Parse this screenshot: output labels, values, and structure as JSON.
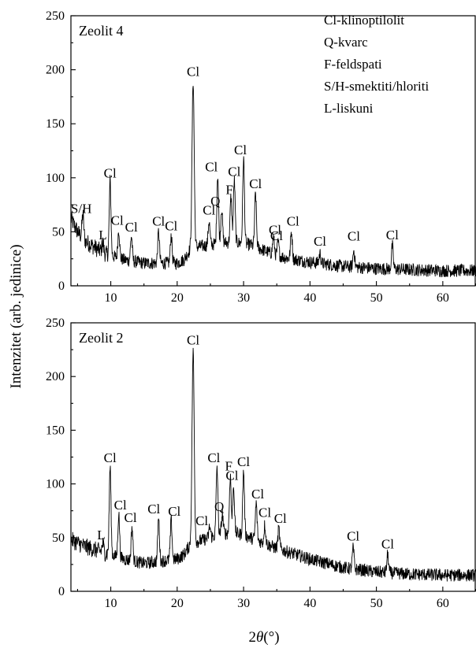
{
  "chart_data": {
    "type": "line",
    "xlabel": "2θ(°)",
    "ylabel": "Intenzitet (arb. jedinice)",
    "xlim": [
      4,
      65
    ],
    "x_ticks": [
      10,
      20,
      30,
      40,
      50,
      60
    ],
    "legend": [
      "Cl-klinoptilolit",
      "Q-kvarc",
      "F-feldspati",
      "S/H-smektiti/hloriti",
      "L-liskuni"
    ],
    "panels": [
      {
        "title": "Zeolit 4",
        "ylim": [
          0,
          250
        ],
        "y_ticks": [
          0,
          50,
          100,
          150,
          200,
          250
        ],
        "background": [
          [
            4,
            62
          ],
          [
            5,
            50
          ],
          [
            6,
            42
          ],
          [
            7,
            38
          ],
          [
            8,
            34
          ],
          [
            9,
            30
          ],
          [
            10,
            28
          ],
          [
            12,
            24
          ],
          [
            15,
            21
          ],
          [
            20,
            21
          ],
          [
            21,
            24
          ],
          [
            22,
            34
          ],
          [
            23,
            36
          ],
          [
            25,
            38
          ],
          [
            27,
            40
          ],
          [
            29,
            40
          ],
          [
            31,
            38
          ],
          [
            33,
            33
          ],
          [
            35,
            28
          ],
          [
            37,
            25
          ],
          [
            40,
            22
          ],
          [
            45,
            18
          ],
          [
            50,
            16
          ],
          [
            55,
            15
          ],
          [
            60,
            14
          ],
          [
            65,
            14
          ]
        ],
        "peaks": [
          {
            "x": 5.8,
            "y": 66,
            "label": "S/H"
          },
          {
            "x": 8.8,
            "y": 40,
            "label": "L"
          },
          {
            "x": 9.9,
            "y": 96,
            "label": "Cl"
          },
          {
            "x": 11.2,
            "y": 52,
            "label": "Cl"
          },
          {
            "x": 13.1,
            "y": 46,
            "label": "Cl"
          },
          {
            "x": 17.2,
            "y": 50,
            "label": "Cl"
          },
          {
            "x": 19.1,
            "y": 47,
            "label": "Cl"
          },
          {
            "x": 22.4,
            "y": 190,
            "label": "Cl"
          },
          {
            "x": 24.8,
            "y": 60,
            "label": "Cl"
          },
          {
            "x": 26.1,
            "y": 103,
            "label": "Cl"
          },
          {
            "x": 26.7,
            "y": 72,
            "label": "Q"
          },
          {
            "x": 28.1,
            "y": 82,
            "label": "F"
          },
          {
            "x": 28.6,
            "y": 98,
            "label": "Cl"
          },
          {
            "x": 30.0,
            "y": 118,
            "label": "Cl"
          },
          {
            "x": 31.8,
            "y": 86,
            "label": "Cl"
          },
          {
            "x": 34.5,
            "y": 45,
            "label": "Cl"
          },
          {
            "x": 35.2,
            "y": 40,
            "label": "Cl"
          },
          {
            "x": 37.2,
            "y": 50,
            "label": "Cl"
          },
          {
            "x": 41.5,
            "y": 30,
            "label": "Cl"
          },
          {
            "x": 46.6,
            "y": 33,
            "label": "Cl"
          },
          {
            "x": 52.4,
            "y": 37,
            "label": "Cl"
          }
        ]
      },
      {
        "title": "Zeolit 2",
        "ylim": [
          0,
          250
        ],
        "y_ticks": [
          0,
          50,
          100,
          150,
          200,
          250
        ],
        "background": [
          [
            4,
            48
          ],
          [
            5,
            45
          ],
          [
            6,
            42
          ],
          [
            7,
            40
          ],
          [
            8,
            38
          ],
          [
            9,
            36
          ],
          [
            10,
            34
          ],
          [
            12,
            30
          ],
          [
            15,
            26
          ],
          [
            20,
            30
          ],
          [
            21,
            34
          ],
          [
            22,
            44
          ],
          [
            23,
            46
          ],
          [
            25,
            50
          ],
          [
            27,
            54
          ],
          [
            29,
            54
          ],
          [
            31,
            50
          ],
          [
            33,
            45
          ],
          [
            35,
            40
          ],
          [
            37,
            36
          ],
          [
            40,
            30
          ],
          [
            45,
            22
          ],
          [
            50,
            18
          ],
          [
            55,
            16
          ],
          [
            60,
            15
          ],
          [
            65,
            15
          ]
        ],
        "peaks": [
          {
            "x": 8.8,
            "y": 44,
            "label": "L"
          },
          {
            "x": 9.9,
            "y": 116,
            "label": "Cl"
          },
          {
            "x": 11.2,
            "y": 72,
            "label": "Cl"
          },
          {
            "x": 13.2,
            "y": 60,
            "label": "Cl"
          },
          {
            "x": 17.2,
            "y": 68,
            "label": "Cl"
          },
          {
            "x": 19.1,
            "y": 66,
            "label": "Cl"
          },
          {
            "x": 22.4,
            "y": 224,
            "label": "Cl"
          },
          {
            "x": 24.9,
            "y": 60,
            "label": "Cl"
          },
          {
            "x": 26.0,
            "y": 116,
            "label": "Cl"
          },
          {
            "x": 26.8,
            "y": 72,
            "label": "Q"
          },
          {
            "x": 28.0,
            "y": 108,
            "label": "F"
          },
          {
            "x": 28.5,
            "y": 98,
            "label": "Cl"
          },
          {
            "x": 30.0,
            "y": 112,
            "label": "Cl"
          },
          {
            "x": 31.9,
            "y": 82,
            "label": "Cl"
          },
          {
            "x": 33.2,
            "y": 62,
            "label": "Cl"
          },
          {
            "x": 35.3,
            "y": 58,
            "label": "Cl"
          },
          {
            "x": 46.5,
            "y": 40,
            "label": "Cl"
          },
          {
            "x": 51.7,
            "y": 34,
            "label": "Cl"
          }
        ]
      }
    ]
  }
}
